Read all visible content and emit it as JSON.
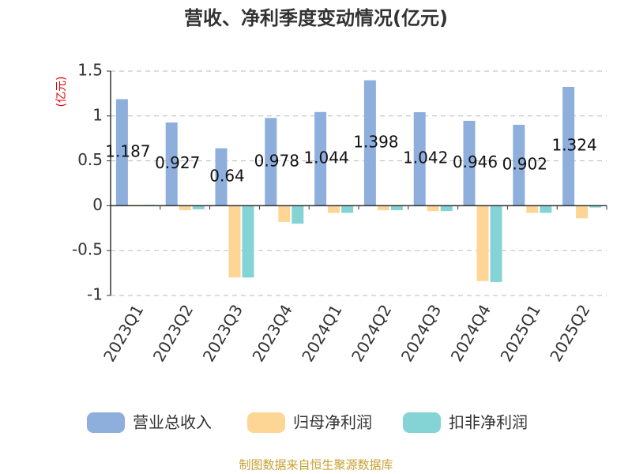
{
  "chart_data": {
    "type": "bar",
    "title": "营收、净利季度变动情况(亿元)",
    "y_label": "(亿元)",
    "source": "制图数据来自恒生聚源数据库",
    "categories": [
      "2023Q1",
      "2023Q2",
      "2023Q3",
      "2023Q4",
      "2024Q1",
      "2024Q2",
      "2024Q3",
      "2024Q4",
      "2025Q1",
      "2025Q2"
    ],
    "series": [
      {
        "name": "营业总收入",
        "color": "#8eaedc",
        "values": [
          1.187,
          0.927,
          0.64,
          0.978,
          1.044,
          1.398,
          1.042,
          0.946,
          0.902,
          1.324
        ]
      },
      {
        "name": "归母净利润",
        "color": "#fdd595",
        "values": [
          0.01,
          -0.05,
          -0.8,
          -0.18,
          -0.08,
          -0.05,
          -0.06,
          -0.84,
          -0.08,
          -0.14
        ]
      },
      {
        "name": "扣非净利润",
        "color": "#84d4d6",
        "values": [
          0.01,
          -0.04,
          -0.8,
          -0.2,
          -0.08,
          -0.05,
          -0.06,
          -0.85,
          -0.08,
          -0.02
        ]
      }
    ],
    "ylim": [
      -1,
      1.5
    ],
    "yticks": [
      1.5,
      1,
      0.5,
      0,
      -0.5,
      -1
    ],
    "grid": true
  }
}
